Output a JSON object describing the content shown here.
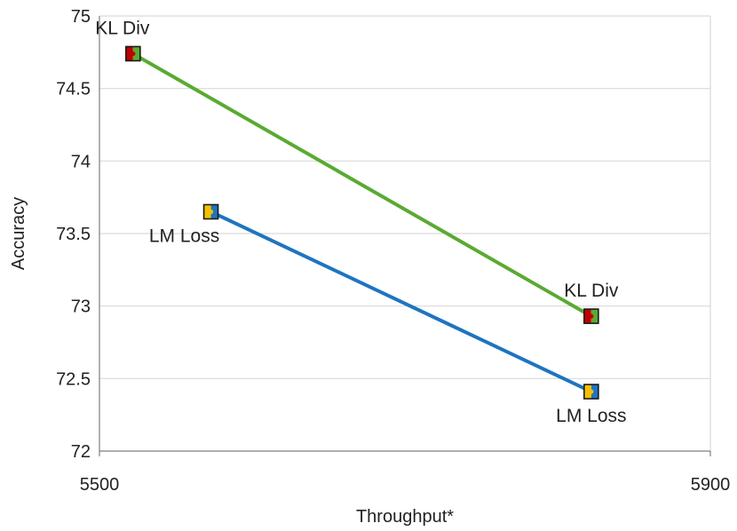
{
  "chart_data": {
    "type": "line",
    "title": "",
    "xlabel": "Throughput*",
    "ylabel": "Accuracy",
    "xlim": [
      5500,
      5900
    ],
    "ylim": [
      72,
      75
    ],
    "x_ticks": [
      5500,
      5900
    ],
    "x_tick_labels": [
      "5500",
      "5900"
    ],
    "y_ticks": [
      72,
      72.5,
      73,
      73.5,
      74,
      74.5,
      75
    ],
    "y_tick_labels": [
      "72",
      "72.5",
      "73",
      "73.5",
      "74",
      "74.5",
      "75"
    ],
    "grid": "horizontal",
    "legend": "none",
    "series": [
      {
        "name": "KL Div",
        "color": "#5aaa32",
        "marker_color": "#c00000",
        "x": [
          5522,
          5822
        ],
        "y": [
          74.74,
          72.93
        ],
        "labels": [
          "KL Div",
          "KL Div"
        ],
        "label_positions": [
          "above",
          "above"
        ]
      },
      {
        "name": "LM Loss",
        "color": "#1f74c0",
        "marker_color": "#f5c000",
        "x": [
          5573,
          5822
        ],
        "y": [
          73.65,
          72.41
        ],
        "labels": [
          "LM Loss",
          "LM Loss"
        ],
        "label_positions": [
          "below",
          "below"
        ]
      }
    ]
  }
}
